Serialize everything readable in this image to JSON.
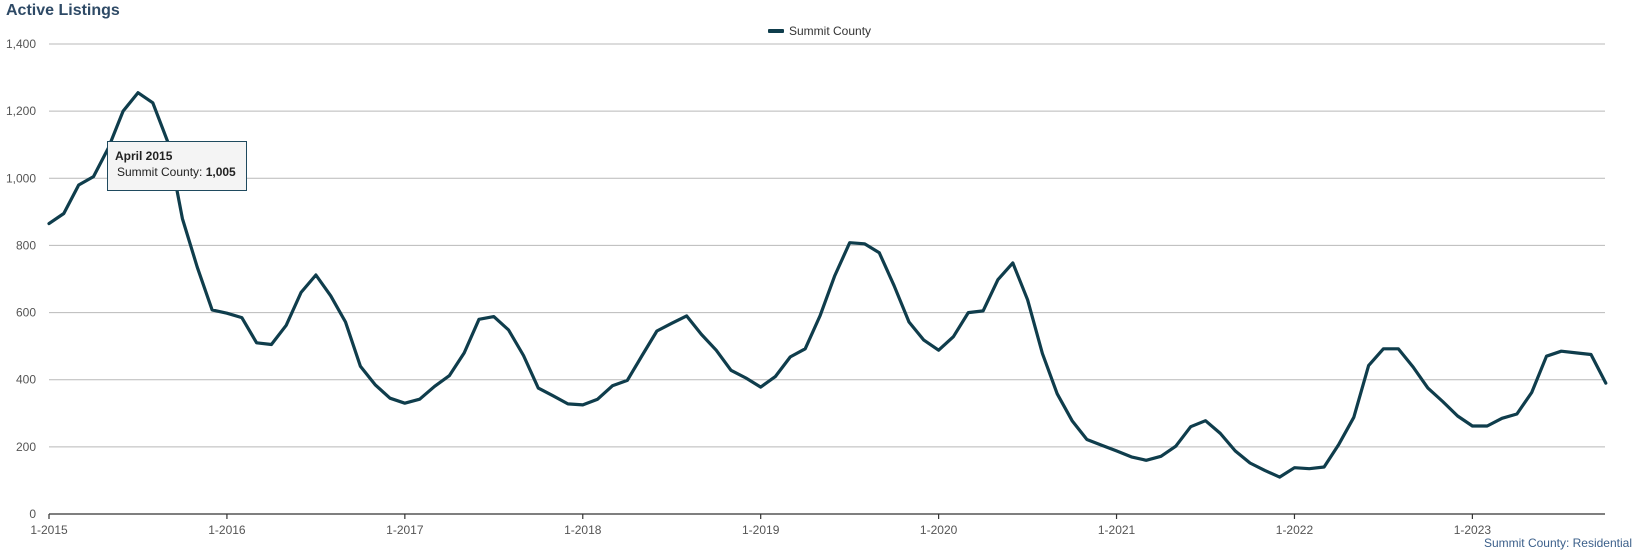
{
  "chart_data": {
    "type": "line",
    "title": "Active Listings",
    "x_start": "2015-01",
    "x_tick_labels": [
      "1-2015",
      "1-2016",
      "1-2017",
      "1-2018",
      "1-2019",
      "1-2020",
      "1-2021",
      "1-2022",
      "1-2023"
    ],
    "y_ticks": [
      0,
      200,
      400,
      600,
      800,
      1000,
      1200,
      1400
    ],
    "ylim": [
      0,
      1400
    ],
    "grid": true,
    "legend_position": "top-center",
    "series": [
      {
        "name": "Summit County",
        "color": "#0f3d4c",
        "values": [
          865,
          895,
          980,
          1005,
          1090,
          1200,
          1255,
          1225,
          1110,
          880,
          735,
          608,
          598,
          585,
          510,
          505,
          562,
          660,
          712,
          650,
          572,
          440,
          385,
          345,
          330,
          342,
          380,
          412,
          480,
          580,
          588,
          548,
          472,
          375,
          352,
          328,
          325,
          342,
          382,
          398,
          472,
          545,
          568,
          590,
          535,
          488,
          428,
          405,
          378,
          410,
          468,
          492,
          590,
          710,
          808,
          805,
          778,
          680,
          572,
          518,
          488,
          528,
          600,
          605,
          698,
          748,
          638,
          478,
          358,
          278,
          222,
          205,
          188,
          170,
          160,
          172,
          202,
          260,
          278,
          240,
          188,
          152,
          130,
          110,
          138,
          135,
          140,
          208,
          288,
          442,
          492,
          492,
          438,
          375,
          335,
          292,
          262,
          262,
          285,
          298,
          362,
          470,
          485,
          480,
          475,
          390
        ]
      }
    ],
    "tooltip": {
      "title": "April 2015",
      "series_label": "Summit County:",
      "value": "1,005"
    },
    "footer": "Summit County: Residential"
  }
}
